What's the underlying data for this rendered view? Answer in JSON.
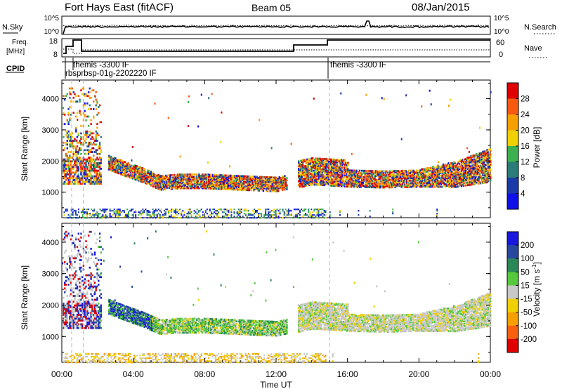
{
  "header": {
    "station": "Fort Hays East (fitACF)",
    "beam": "Beam 05",
    "date": "08/Jan/2015"
  },
  "noise_panel": {
    "left_label": "N.Sky",
    "right_label": "N.Search",
    "left_ticks": [
      "10^5",
      "10^0"
    ],
    "right_ticks": [
      "10^5",
      "10^0"
    ]
  },
  "freq_panel": {
    "left_label_line1": "Freq.",
    "left_label_line2": "[MHz]",
    "right_label": "Nave",
    "left_ticks": [
      "18",
      "8"
    ],
    "right_ticks": [
      "60",
      "0"
    ]
  },
  "cpid": {
    "label": "CPID",
    "entries": [
      {
        "text": "themis -3300 IF"
      },
      {
        "text": "rbsprbsp-01g-2202220 IF"
      },
      {
        "text": "themis -3300 IF"
      }
    ]
  },
  "power_cbar": {
    "title": "Power [dB]",
    "ticks": [
      "28",
      "24",
      "20",
      "16",
      "12",
      "8",
      "4"
    ],
    "colors": [
      "#e00000",
      "#f85a10",
      "#f5a000",
      "#f0d000",
      "#3cb050",
      "#2a7c78",
      "#1a3aa8",
      "#1010e8"
    ]
  },
  "velocity_cbar": {
    "title": "Velocity [m s",
    "title_sup": "-1",
    "title_end": "]",
    "ticks": [
      "200",
      "100",
      "50",
      "15",
      "-15",
      "-50",
      "-100",
      "-200"
    ],
    "colors": [
      "#1818e0",
      "#2848a0",
      "#2a8858",
      "#56c83c",
      "#c8c8c8",
      "#f0d000",
      "#f5a000",
      "#f86010",
      "#e00000"
    ]
  },
  "chart_data": [
    {
      "type": "heatmap",
      "title": "Power",
      "ylabel": "Slant Range [km]",
      "xlabel": "Time UT",
      "x_ticks": [
        "00:00",
        "04:00",
        "08:00",
        "12:00",
        "16:00",
        "20:00",
        "00:00"
      ],
      "y_ticks": [
        "4000",
        "3000",
        "2000",
        "1000"
      ],
      "xlim_hours": [
        0,
        24
      ],
      "ylim_km": [
        180,
        4600
      ],
      "main_echo_band": [
        {
          "t": 2.6,
          "r": 1900
        },
        {
          "t": 3.5,
          "r": 1700
        },
        {
          "t": 4.5,
          "r": 1500
        },
        {
          "t": 5.5,
          "r": 1250
        },
        {
          "t": 6.5,
          "r": 1300
        },
        {
          "t": 8.0,
          "r": 1300
        },
        {
          "t": 10.0,
          "r": 1250
        },
        {
          "t": 12.0,
          "r": 1200
        },
        {
          "t": 14.0,
          "r": 1450
        },
        {
          "t": 16.0,
          "r": 1380
        },
        {
          "t": 18.0,
          "r": 1350
        },
        {
          "t": 20.0,
          "r": 1380
        },
        {
          "t": 22.0,
          "r": 1450
        },
        {
          "t": 24.0,
          "r": 1700
        }
      ]
    },
    {
      "type": "heatmap",
      "title": "Velocity",
      "ylabel": "Slant Range [km]",
      "xlabel": "Time UT",
      "x_ticks": [
        "00:00",
        "04:00",
        "08:00",
        "12:00",
        "16:00",
        "20:00",
        "00:00"
      ],
      "y_ticks": [
        "4000",
        "3000",
        "2000",
        "1000"
      ],
      "xlim_hours": [
        0,
        24
      ],
      "ylim_km": [
        180,
        4600
      ]
    }
  ]
}
